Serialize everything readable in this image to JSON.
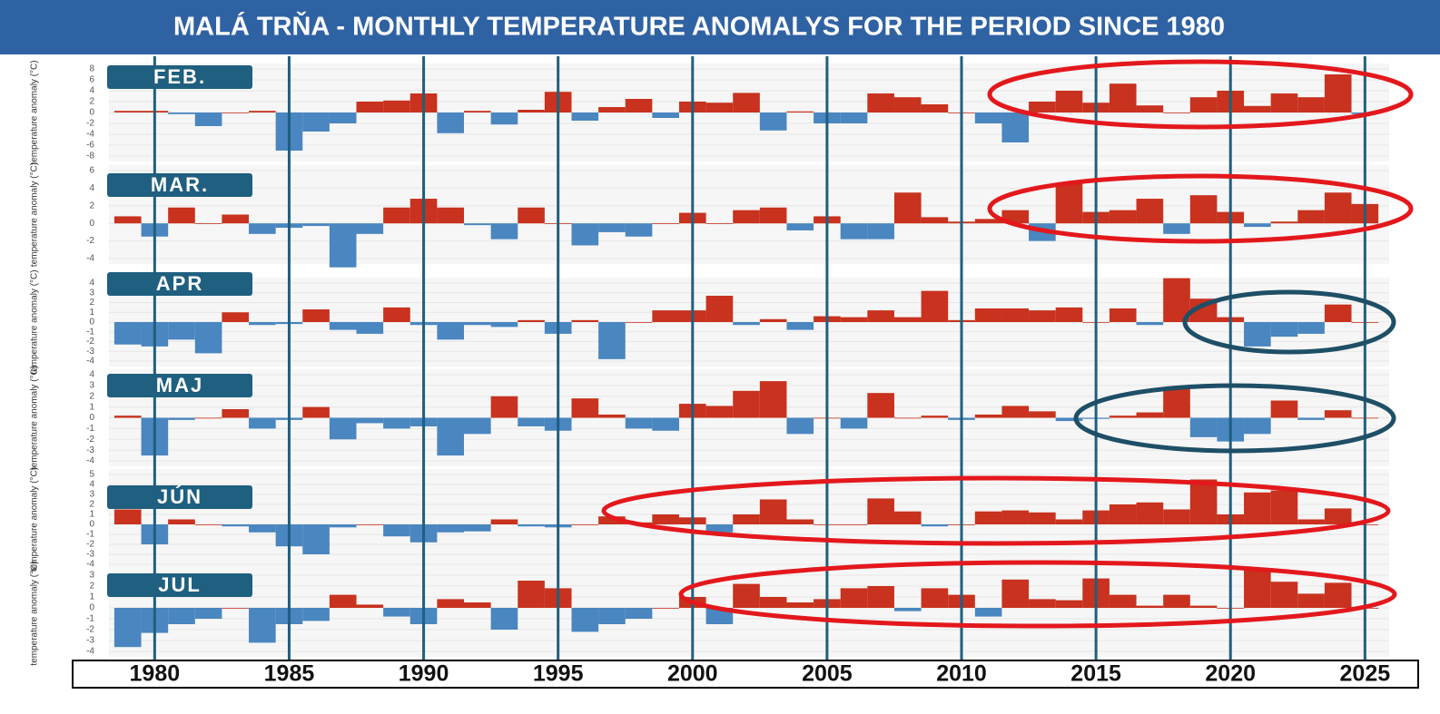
{
  "title": "MALÁ TRŇA - MONTHLY TEMPERATURE ANOMALYS FOR THE PERIOD SINCE 1980",
  "xaxis": {
    "xlim": [
      1978.3,
      2025.9
    ],
    "xticks": [
      1980,
      1985,
      1990,
      1995,
      2000,
      2005,
      2010,
      2015,
      2020,
      2025
    ]
  },
  "chart_data": [
    {
      "type": "bar",
      "title": "FEB.",
      "ylabel": "temperature anomaly (°C)",
      "color_positive": "#c8321e",
      "color_negative": "#4a86c0",
      "x": [
        1979,
        1980,
        1981,
        1982,
        1983,
        1984,
        1985,
        1986,
        1987,
        1988,
        1989,
        1990,
        1991,
        1992,
        1993,
        1994,
        1995,
        1996,
        1997,
        1998,
        1999,
        2000,
        2001,
        2002,
        2003,
        2004,
        2005,
        2006,
        2007,
        2008,
        2009,
        2010,
        2011,
        2012,
        2013,
        2014,
        2015,
        2016,
        2017,
        2018,
        2019,
        2020,
        2021,
        2022,
        2023,
        2024,
        2025
      ],
      "values": [
        0.3,
        0.3,
        -0.3,
        -2.5,
        0,
        0.3,
        -7,
        -3.5,
        -2,
        2,
        2.2,
        3.5,
        -3.8,
        0.3,
        -2.2,
        0.5,
        3.8,
        -1.5,
        1,
        2.5,
        -1,
        2,
        1.8,
        3.6,
        -3.3,
        0.2,
        -2,
        -2,
        3.5,
        2.8,
        1.5,
        0,
        -2,
        -5.5,
        2,
        4,
        1.8,
        5.3,
        1.3,
        0,
        2.8,
        4,
        1.2,
        3.5,
        2.8,
        7,
        -0.3
      ],
      "ylim": [
        -8,
        8
      ],
      "yticks": [
        -8,
        -6,
        -4,
        -2,
        0,
        2,
        4,
        6,
        8
      ]
    },
    {
      "type": "bar",
      "title": "MAR.",
      "ylabel": "temperature anomaly (°C)",
      "color_positive": "#c8321e",
      "color_negative": "#4a86c0",
      "x": [
        1979,
        1980,
        1981,
        1982,
        1983,
        1984,
        1985,
        1986,
        1987,
        1988,
        1989,
        1990,
        1991,
        1992,
        1993,
        1994,
        1995,
        1996,
        1997,
        1998,
        1999,
        2000,
        2001,
        2002,
        2003,
        2004,
        2005,
        2006,
        2007,
        2008,
        2009,
        2010,
        2011,
        2012,
        2013,
        2014,
        2015,
        2016,
        2017,
        2018,
        2019,
        2020,
        2021,
        2022,
        2023,
        2024,
        2025
      ],
      "values": [
        0.8,
        -1.5,
        1.8,
        0,
        1,
        -1.2,
        -0.5,
        -0.3,
        -5,
        -1.2,
        1.8,
        2.8,
        1.8,
        -0.2,
        -1.8,
        1.8,
        0,
        -2.5,
        -1,
        -1.5,
        0,
        1.2,
        0,
        1.5,
        1.8,
        -0.8,
        0.8,
        -1.8,
        -1.8,
        3.5,
        0.7,
        0.2,
        0.5,
        1.5,
        -2,
        4.5,
        1.3,
        1.5,
        2.8,
        -1.2,
        3.2,
        1.3,
        -0.4,
        0.2,
        1.5,
        3.5,
        2.2
      ],
      "ylim": [
        -4,
        6
      ],
      "yticks": [
        -4,
        -2,
        0,
        2,
        4,
        6
      ]
    },
    {
      "type": "bar",
      "title": "APR",
      "ylabel": "temperature anomaly (°C)",
      "color_positive": "#c8321e",
      "color_negative": "#4a86c0",
      "x": [
        1979,
        1980,
        1981,
        1982,
        1983,
        1984,
        1985,
        1986,
        1987,
        1988,
        1989,
        1990,
        1991,
        1992,
        1993,
        1994,
        1995,
        1996,
        1997,
        1998,
        1999,
        2000,
        2001,
        2002,
        2003,
        2004,
        2005,
        2006,
        2007,
        2008,
        2009,
        2010,
        2011,
        2012,
        2013,
        2014,
        2015,
        2016,
        2017,
        2018,
        2019,
        2020,
        2021,
        2022,
        2023,
        2024,
        2025
      ],
      "values": [
        -2.3,
        -2.5,
        -1.8,
        -3.2,
        1,
        -0.3,
        -0.2,
        1.3,
        -0.8,
        -1.2,
        1.5,
        -0.3,
        -1.8,
        -0.3,
        -0.5,
        0.2,
        -1.2,
        0.2,
        -3.8,
        0,
        1.2,
        1.2,
        2.7,
        -0.3,
        0.3,
        -0.8,
        0.6,
        0.5,
        1.2,
        0.5,
        3.2,
        0.2,
        1.4,
        1.4,
        1.2,
        1.5,
        0,
        1.4,
        -0.3,
        4.5,
        2.4,
        0.5,
        -2.5,
        -1.5,
        -1.2,
        1.8,
        0
      ],
      "ylim": [
        -4,
        4
      ],
      "yticks": [
        -4,
        -3,
        -2,
        -1,
        0,
        1,
        2,
        3,
        4
      ]
    },
    {
      "type": "bar",
      "title": "MAJ",
      "ylabel": "temperature anomaly (°C)",
      "color_positive": "#c8321e",
      "color_negative": "#4a86c0",
      "x": [
        1979,
        1980,
        1981,
        1982,
        1983,
        1984,
        1985,
        1986,
        1987,
        1988,
        1989,
        1990,
        1991,
        1992,
        1993,
        1994,
        1995,
        1996,
        1997,
        1998,
        1999,
        2000,
        2001,
        2002,
        2003,
        2004,
        2005,
        2006,
        2007,
        2008,
        2009,
        2010,
        2011,
        2012,
        2013,
        2014,
        2015,
        2016,
        2017,
        2018,
        2019,
        2020,
        2021,
        2022,
        2023,
        2024,
        2025
      ],
      "values": [
        0.2,
        -3.5,
        -0.2,
        0,
        0.8,
        -1,
        -0.2,
        1,
        -2,
        -0.5,
        -1,
        -0.8,
        -3.5,
        -1.5,
        2,
        -0.8,
        -1.2,
        1.8,
        0.3,
        -1,
        -1.2,
        1.3,
        1.1,
        2.5,
        3.4,
        -1.5,
        0,
        -1,
        2.3,
        0,
        0.2,
        -0.2,
        0.3,
        1.1,
        0.6,
        -0.3,
        -0.1,
        0.2,
        0.5,
        2.8,
        -1.8,
        -2.2,
        -1.5,
        1.6,
        -0.2,
        0.7,
        0
      ],
      "ylim": [
        -4,
        4
      ],
      "yticks": [
        -4,
        -3,
        -2,
        -1,
        0,
        1,
        2,
        3,
        4
      ]
    },
    {
      "type": "bar",
      "title": "JÚN",
      "ylabel": "temperature anomaly (°C)",
      "color_positive": "#c8321e",
      "color_negative": "#4a86c0",
      "x": [
        1979,
        1980,
        1981,
        1982,
        1983,
        1984,
        1985,
        1986,
        1987,
        1988,
        1989,
        1990,
        1991,
        1992,
        1993,
        1994,
        1995,
        1996,
        1997,
        1998,
        1999,
        2000,
        2001,
        2002,
        2003,
        2004,
        2005,
        2006,
        2007,
        2008,
        2009,
        2010,
        2011,
        2012,
        2013,
        2014,
        2015,
        2016,
        2017,
        2018,
        2019,
        2020,
        2021,
        2022,
        2023,
        2024,
        2025
      ],
      "values": [
        1.5,
        -2,
        0.5,
        0,
        -0.2,
        -0.8,
        -2.2,
        -3,
        -0.3,
        0,
        -1.2,
        -1.8,
        -0.8,
        -0.7,
        0.5,
        -0.2,
        -0.3,
        0,
        0.8,
        0.2,
        1,
        0.7,
        -0.8,
        1,
        2.5,
        0.5,
        0,
        0,
        2.6,
        1.3,
        -0.2,
        0,
        1.3,
        1.4,
        1.2,
        0.5,
        1.4,
        2,
        2.2,
        1.5,
        4.5,
        1,
        3.2,
        3.4,
        0.5,
        1.6,
        0
      ],
      "ylim": [
        -4,
        5
      ],
      "yticks": [
        -4,
        -3,
        -2,
        -1,
        0,
        1,
        2,
        3,
        4,
        5
      ]
    },
    {
      "type": "bar",
      "title": "JUL",
      "ylabel": "temperature anomaly (°C)",
      "color_positive": "#c8321e",
      "color_negative": "#4a86c0",
      "x": [
        1979,
        1980,
        1981,
        1982,
        1983,
        1984,
        1985,
        1986,
        1987,
        1988,
        1989,
        1990,
        1991,
        1992,
        1993,
        1994,
        1995,
        1996,
        1997,
        1998,
        1999,
        2000,
        2001,
        2002,
        2003,
        2004,
        2005,
        2006,
        2007,
        2008,
        2009,
        2010,
        2011,
        2012,
        2013,
        2014,
        2015,
        2016,
        2017,
        2018,
        2019,
        2020,
        2021,
        2022,
        2023,
        2024,
        2025
      ],
      "values": [
        -3.6,
        -2.3,
        -1.5,
        -1,
        0,
        -3.2,
        -1.5,
        -1.2,
        1.2,
        0.3,
        -0.8,
        -1.5,
        0.8,
        0.5,
        -2,
        2.5,
        1.8,
        -2.2,
        -1.5,
        -1,
        0,
        1,
        -1.5,
        2.2,
        1,
        0.5,
        0.8,
        1.8,
        2,
        -0.3,
        1.8,
        1.2,
        -0.8,
        2.6,
        0.8,
        0.7,
        2.7,
        1.2,
        0.2,
        1.2,
        0.2,
        0,
        3.5,
        2.4,
        1.3,
        2.3,
        0
      ],
      "ylim": [
        -4,
        3
      ],
      "yticks": [
        -4,
        -3,
        -2,
        -1,
        0,
        1,
        2,
        3
      ]
    }
  ]
}
